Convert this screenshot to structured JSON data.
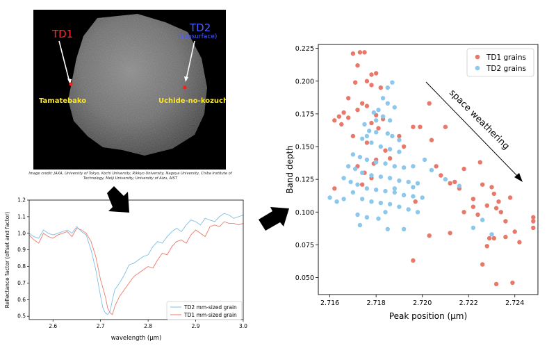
{
  "asteroid_image": {
    "labels": {
      "td1": "TD1",
      "td2": "TD2",
      "td2_sub": "(subsurface)",
      "site1": "Tamatebako",
      "site2": "Uchide-no-kozuchi"
    },
    "colors": {
      "td1": "#ff2b2b",
      "td2": "#4a5cff",
      "site": "#ffe81a",
      "marker": "#ff1a1a"
    },
    "credit": "Image credit: JAXA, University of Tokyo, Kochi University, Rikkyo University, Nagoya University, Chiba Institute of Technology, Meiji University, University of Aizu, AIST"
  },
  "arrows": [
    "down-arrow-icon",
    "right-arrow-icon"
  ],
  "chart_data": [
    {
      "type": "line",
      "xlabel": "wavelength (μm)",
      "ylabel": "Reflectance factor (offset and factor)",
      "xlim": [
        2.55,
        3.0
      ],
      "ylim": [
        0.48,
        1.2
      ],
      "xticks": [
        "2.6",
        "2.7",
        "2.8",
        "2.9",
        "3.0"
      ],
      "yticks": [
        "0.5",
        "0.6",
        "0.7",
        "0.8",
        "0.9",
        "1.0",
        "1.1",
        "1.2"
      ],
      "legend": "lower-right",
      "series": [
        {
          "name": "TD2 mm-sized grain",
          "color": "#7fbfe6",
          "x": [
            2.55,
            2.56,
            2.57,
            2.58,
            2.59,
            2.6,
            2.61,
            2.62,
            2.63,
            2.64,
            2.65,
            2.66,
            2.67,
            2.68,
            2.69,
            2.7,
            2.705,
            2.71,
            2.715,
            2.72,
            2.725,
            2.73,
            2.74,
            2.75,
            2.76,
            2.77,
            2.78,
            2.79,
            2.8,
            2.81,
            2.82,
            2.83,
            2.84,
            2.85,
            2.86,
            2.87,
            2.88,
            2.89,
            2.9,
            2.91,
            2.92,
            2.93,
            2.94,
            2.95,
            2.96,
            2.97,
            2.98,
            2.99,
            3.0
          ],
          "y": [
            1.0,
            0.98,
            0.97,
            1.02,
            1.0,
            0.99,
            1.0,
            1.01,
            1.02,
            1.0,
            1.04,
            1.01,
            0.99,
            0.9,
            0.78,
            0.62,
            0.55,
            0.52,
            0.51,
            0.53,
            0.6,
            0.66,
            0.7,
            0.75,
            0.81,
            0.82,
            0.84,
            0.86,
            0.87,
            0.92,
            0.95,
            0.94,
            0.98,
            1.01,
            1.03,
            1.01,
            1.05,
            1.08,
            1.07,
            1.05,
            1.09,
            1.08,
            1.07,
            1.1,
            1.12,
            1.11,
            1.09,
            1.1,
            1.11
          ]
        },
        {
          "name": "TD1 mm-sized grain",
          "color": "#ee7a6a",
          "x": [
            2.55,
            2.56,
            2.57,
            2.58,
            2.59,
            2.6,
            2.61,
            2.62,
            2.63,
            2.64,
            2.65,
            2.66,
            2.67,
            2.68,
            2.69,
            2.7,
            2.71,
            2.715,
            2.72,
            2.725,
            2.73,
            2.74,
            2.75,
            2.76,
            2.77,
            2.78,
            2.79,
            2.8,
            2.81,
            2.82,
            2.83,
            2.84,
            2.85,
            2.86,
            2.87,
            2.88,
            2.89,
            2.9,
            2.91,
            2.92,
            2.93,
            2.94,
            2.95,
            2.96,
            2.97,
            2.98,
            2.99,
            3.0
          ],
          "y": [
            0.99,
            0.96,
            0.94,
            1.0,
            0.98,
            0.97,
            0.99,
            1.0,
            1.01,
            0.98,
            1.03,
            1.02,
            1.0,
            0.95,
            0.86,
            0.72,
            0.62,
            0.55,
            0.52,
            0.51,
            0.56,
            0.62,
            0.66,
            0.7,
            0.74,
            0.76,
            0.78,
            0.8,
            0.79,
            0.84,
            0.88,
            0.87,
            0.92,
            0.95,
            0.96,
            0.94,
            0.99,
            1.02,
            1.0,
            0.98,
            1.04,
            1.05,
            1.04,
            1.07,
            1.06,
            1.06,
            1.05,
            1.06
          ]
        }
      ]
    },
    {
      "type": "scatter",
      "xlabel": "Peak position (μm)",
      "ylabel": "Band depth",
      "xlim": [
        2.7155,
        2.725
      ],
      "ylim": [
        0.037,
        0.228
      ],
      "xticks": [
        "2.716",
        "2.718",
        "2.720",
        "2.722",
        "2.724"
      ],
      "yticks": [
        "0.050",
        "0.075",
        "0.100",
        "0.125",
        "0.150",
        "0.175",
        "0.200",
        "0.225"
      ],
      "legend": "top-right",
      "annotation": "space weathering",
      "series": [
        {
          "name": "TD1 grains",
          "color": "#e8786a",
          "points": [
            [
              2.717,
              0.221
            ],
            [
              2.7173,
              0.222
            ],
            [
              2.7175,
              0.222
            ],
            [
              2.7172,
              0.212
            ],
            [
              2.7178,
              0.205
            ],
            [
              2.7171,
              0.199
            ],
            [
              2.7176,
              0.2
            ],
            [
              2.7178,
              0.197
            ],
            [
              2.718,
              0.206
            ],
            [
              2.7182,
              0.195
            ],
            [
              2.7168,
              0.187
            ],
            [
              2.7174,
              0.183
            ],
            [
              2.7176,
              0.181
            ],
            [
              2.7166,
              0.176
            ],
            [
              2.7164,
              0.173
            ],
            [
              2.7162,
              0.17
            ],
            [
              2.7165,
              0.167
            ],
            [
              2.7168,
              0.172
            ],
            [
              2.7172,
              0.178
            ],
            [
              2.718,
              0.174
            ],
            [
              2.7183,
              0.171
            ],
            [
              2.7178,
              0.168
            ],
            [
              2.7181,
              0.164
            ],
            [
              2.717,
              0.158
            ],
            [
              2.7176,
              0.153
            ],
            [
              2.7184,
              0.147
            ],
            [
              2.7186,
              0.141
            ],
            [
              2.718,
              0.14
            ],
            [
              2.7179,
              0.137
            ],
            [
              2.7172,
              0.135
            ],
            [
              2.7175,
              0.13
            ],
            [
              2.7178,
              0.126
            ],
            [
              2.7174,
              0.121
            ],
            [
              2.7162,
              0.118
            ],
            [
              2.719,
              0.158
            ],
            [
              2.7192,
              0.15
            ],
            [
              2.7196,
              0.165
            ],
            [
              2.7199,
              0.165
            ],
            [
              2.7203,
              0.183
            ],
            [
              2.7204,
              0.155
            ],
            [
              2.7206,
              0.135
            ],
            [
              2.7208,
              0.128
            ],
            [
              2.721,
              0.165
            ],
            [
              2.7212,
              0.122
            ],
            [
              2.7214,
              0.123
            ],
            [
              2.7216,
              0.118
            ],
            [
              2.7218,
              0.133
            ],
            [
              2.7222,
              0.104
            ],
            [
              2.7224,
              0.098
            ],
            [
              2.7226,
              0.121
            ],
            [
              2.7228,
              0.105
            ],
            [
              2.723,
              0.119
            ],
            [
              2.7231,
              0.114
            ],
            [
              2.7232,
              0.103
            ],
            [
              2.7233,
              0.108
            ],
            [
              2.7225,
              0.138
            ],
            [
              2.7234,
              0.1
            ],
            [
              2.7236,
              0.093
            ],
            [
              2.7238,
              0.111
            ],
            [
              2.724,
              0.085
            ],
            [
              2.7248,
              0.096
            ],
            [
              2.7248,
              0.093
            ],
            [
              2.7248,
              0.088
            ],
            [
              2.7236,
              0.081
            ],
            [
              2.7231,
              0.08
            ],
            [
              2.7229,
              0.08
            ],
            [
              2.7228,
              0.074
            ],
            [
              2.7226,
              0.06
            ],
            [
              2.7242,
              0.077
            ],
            [
              2.7232,
              0.045
            ],
            [
              2.7239,
              0.046
            ],
            [
              2.7203,
              0.082
            ],
            [
              2.7212,
              0.084
            ],
            [
              2.7197,
              0.108
            ],
            [
              2.7196,
              0.063
            ],
            [
              2.7222,
              0.11
            ],
            [
              2.7218,
              0.1
            ]
          ]
        },
        {
          "name": "TD2 grains",
          "color": "#8cc7ec",
          "points": [
            [
              2.7187,
              0.199
            ],
            [
              2.7185,
              0.195
            ],
            [
              2.7183,
              0.187
            ],
            [
              2.7185,
              0.183
            ],
            [
              2.7188,
              0.18
            ],
            [
              2.7181,
              0.178
            ],
            [
              2.7179,
              0.176
            ],
            [
              2.7183,
              0.173
            ],
            [
              2.7186,
              0.17
            ],
            [
              2.7175,
              0.167
            ],
            [
              2.7177,
              0.162
            ],
            [
              2.718,
              0.161
            ],
            [
              2.7185,
              0.16
            ],
            [
              2.7187,
              0.158
            ],
            [
              2.719,
              0.155
            ],
            [
              2.7174,
              0.156
            ],
            [
              2.7178,
              0.153
            ],
            [
              2.7182,
              0.15
            ],
            [
              2.7186,
              0.148
            ],
            [
              2.719,
              0.146
            ],
            [
              2.717,
              0.144
            ],
            [
              2.7173,
              0.142
            ],
            [
              2.7176,
              0.14
            ],
            [
              2.718,
              0.138
            ],
            [
              2.7184,
              0.137
            ],
            [
              2.7188,
              0.135
            ],
            [
              2.7192,
              0.134
            ],
            [
              2.7196,
              0.135
            ],
            [
              2.7168,
              0.135
            ],
            [
              2.7171,
              0.133
            ],
            [
              2.7174,
              0.13
            ],
            [
              2.7178,
              0.128
            ],
            [
              2.7182,
              0.127
            ],
            [
              2.7186,
              0.126
            ],
            [
              2.719,
              0.124
            ],
            [
              2.7194,
              0.123
            ],
            [
              2.7198,
              0.122
            ],
            [
              2.7166,
              0.126
            ],
            [
              2.7169,
              0.123
            ],
            [
              2.7172,
              0.121
            ],
            [
              2.7176,
              0.118
            ],
            [
              2.718,
              0.117
            ],
            [
              2.7184,
              0.116
            ],
            [
              2.7188,
              0.115
            ],
            [
              2.7192,
              0.113
            ],
            [
              2.7196,
              0.112
            ],
            [
              2.72,
              0.111
            ],
            [
              2.717,
              0.115
            ],
            [
              2.7174,
              0.11
            ],
            [
              2.7178,
              0.108
            ],
            [
              2.7182,
              0.107
            ],
            [
              2.7186,
              0.106
            ],
            [
              2.719,
              0.104
            ],
            [
              2.7194,
              0.102
            ],
            [
              2.7198,
              0.1
            ],
            [
              2.716,
              0.111
            ],
            [
              2.7163,
              0.108
            ],
            [
              2.7166,
              0.11
            ],
            [
              2.7172,
              0.098
            ],
            [
              2.7176,
              0.096
            ],
            [
              2.7181,
              0.095
            ],
            [
              2.7185,
              0.087
            ],
            [
              2.7192,
              0.087
            ],
            [
              2.7173,
              0.09
            ],
            [
              2.7196,
              0.119
            ],
            [
              2.7201,
              0.14
            ],
            [
              2.7204,
              0.132
            ],
            [
              2.721,
              0.125
            ],
            [
              2.7216,
              0.12
            ],
            [
              2.7222,
              0.088
            ],
            [
              2.723,
              0.083
            ],
            [
              2.7226,
              0.094
            ],
            [
              2.7184,
              0.1
            ],
            [
              2.7188,
              0.118
            ],
            [
              2.7176,
              0.158
            ],
            [
              2.718,
              0.17
            ]
          ]
        }
      ]
    }
  ]
}
